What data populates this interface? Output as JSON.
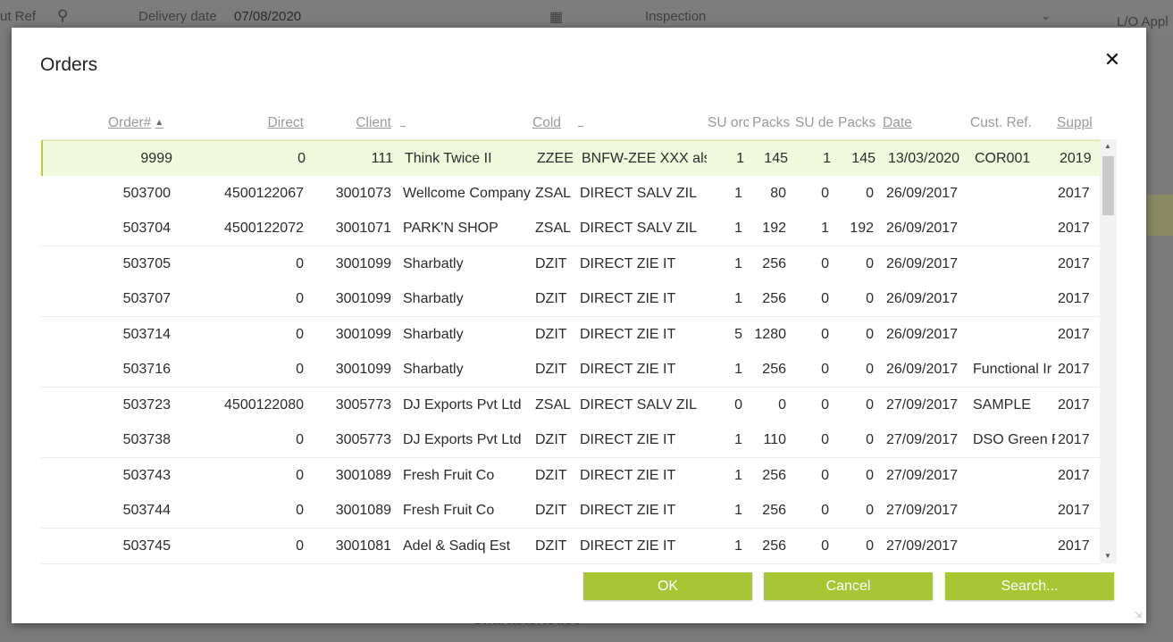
{
  "background": {
    "ref_label": "ut Ref",
    "delivery_label": "Delivery date",
    "delivery_value": "07/08/2020",
    "inspection_label": "Inspection",
    "lo_label": "L/O Appl",
    "section_label": "Characteristics"
  },
  "dialog": {
    "title": "Orders",
    "close_label": "✕"
  },
  "columns": [
    {
      "label": "Order#",
      "sortable": true,
      "sorted": "asc"
    },
    {
      "label": "Direct",
      "sortable": true
    },
    {
      "label": "Client",
      "sortable": true
    },
    {
      "label": "",
      "sortable": false
    },
    {
      "label": "Cold",
      "sortable": true
    },
    {
      "label": "",
      "sortable": false
    },
    {
      "label": "SU orc",
      "sortable": false
    },
    {
      "label": "Packs",
      "sortable": false
    },
    {
      "label": "SU de",
      "sortable": false
    },
    {
      "label": "Packs",
      "sortable": false
    },
    {
      "label": "Date",
      "sortable": true
    },
    {
      "label": "Cust. Ref.",
      "sortable": false
    },
    {
      "label": "Suppl",
      "sortable": true
    }
  ],
  "rows": [
    [
      "9999",
      "0",
      "111",
      "Think Twice II",
      "ZZEE",
      "BNFW-ZEE XXX als",
      "1",
      "145",
      "1",
      "145",
      "13/03/2020",
      "COR001",
      "2019"
    ],
    [
      "503700",
      "4500122067",
      "3001073",
      "Wellcome Company",
      "ZSAL",
      "DIRECT SALV ZIL",
      "1",
      "80",
      "0",
      "0",
      "26/09/2017",
      "",
      "2017"
    ],
    [
      "503704",
      "4500122072",
      "3001071",
      "PARK'N SHOP",
      "ZSAL",
      "DIRECT SALV ZIL",
      "1",
      "192",
      "1",
      "192",
      "26/09/2017",
      "",
      "2017"
    ],
    [
      "503705",
      "0",
      "3001099",
      "Sharbatly",
      "DZIT",
      "DIRECT ZIE IT",
      "1",
      "256",
      "0",
      "0",
      "26/09/2017",
      "",
      "2017"
    ],
    [
      "503707",
      "0",
      "3001099",
      "Sharbatly",
      "DZIT",
      "DIRECT ZIE IT",
      "1",
      "256",
      "0",
      "0",
      "26/09/2017",
      "",
      "2017"
    ],
    [
      "503714",
      "0",
      "3001099",
      "Sharbatly",
      "DZIT",
      "DIRECT ZIE IT",
      "5",
      "1280",
      "0",
      "0",
      "26/09/2017",
      "",
      "2017"
    ],
    [
      "503716",
      "0",
      "3001099",
      "Sharbatly",
      "DZIT",
      "DIRECT ZIE IT",
      "1",
      "256",
      "0",
      "0",
      "26/09/2017",
      "Functional Ir",
      "2017"
    ],
    [
      "503723",
      "4500122080",
      "3005773",
      "DJ Exports Pvt Ltd",
      "ZSAL",
      "DIRECT SALV ZIL",
      "0",
      "0",
      "0",
      "0",
      "27/09/2017",
      "SAMPLE",
      "2017"
    ],
    [
      "503738",
      "0",
      "3005773",
      "DJ Exports Pvt Ltd",
      "DZIT",
      "DIRECT ZIE IT",
      "1",
      "110",
      "0",
      "0",
      "27/09/2017",
      "DSO Green F",
      "2017"
    ],
    [
      "503743",
      "0",
      "3001089",
      "Fresh Fruit Co",
      "DZIT",
      "DIRECT ZIE IT",
      "1",
      "256",
      "0",
      "0",
      "27/09/2017",
      "",
      "2017"
    ],
    [
      "503744",
      "0",
      "3001089",
      "Fresh Fruit Co",
      "DZIT",
      "DIRECT ZIE IT",
      "1",
      "256",
      "0",
      "0",
      "27/09/2017",
      "",
      "2017"
    ],
    [
      "503745",
      "0",
      "3001081",
      "Adel & Sadiq Est",
      "DZIT",
      "DIRECT ZIE IT",
      "1",
      "256",
      "0",
      "0",
      "27/09/2017",
      "",
      "2017"
    ]
  ],
  "selected_row": 0,
  "buttons": {
    "ok": "OK",
    "cancel": "Cancel",
    "search": "Search..."
  },
  "colors": {
    "accent": "#a7c634",
    "selected_row": "#f1fadc"
  }
}
